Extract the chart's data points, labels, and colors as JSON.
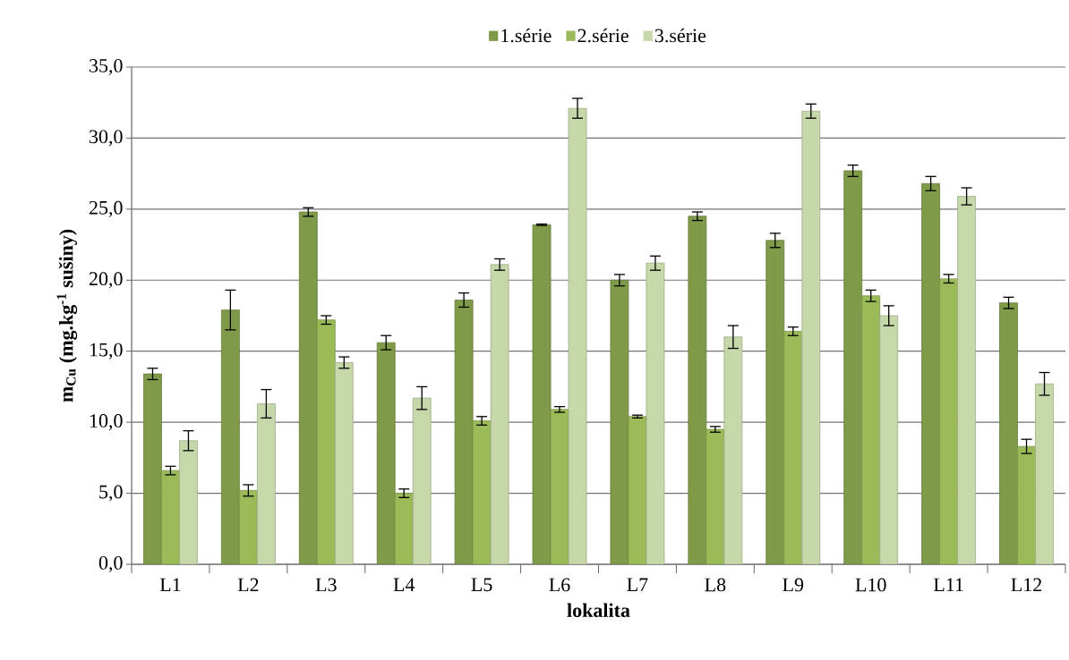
{
  "chart_data": {
    "type": "bar",
    "xlabel": "lokalita",
    "ylabel": "m$_{Cu}$ (mg.kg$^{-1}$ sušiny)",
    "categories": [
      "L1",
      "L2",
      "L3",
      "L4",
      "L5",
      "L6",
      "L7",
      "L8",
      "L9",
      "L10",
      "L11",
      "L12"
    ],
    "series": [
      {
        "name": "1.série",
        "color": "#7f9a48",
        "values": [
          13.4,
          17.9,
          24.8,
          15.6,
          18.6,
          23.9,
          20.0,
          24.5,
          22.8,
          27.7,
          26.8,
          18.4
        ],
        "errors": [
          0.4,
          1.4,
          0.3,
          0.5,
          0.5,
          0.05,
          0.4,
          0.3,
          0.5,
          0.4,
          0.5,
          0.4
        ]
      },
      {
        "name": "2.série",
        "color": "#9bbb59",
        "values": [
          6.6,
          5.2,
          17.2,
          5.0,
          10.1,
          10.9,
          10.4,
          9.5,
          16.4,
          18.9,
          20.1,
          8.3
        ],
        "errors": [
          0.3,
          0.4,
          0.3,
          0.3,
          0.3,
          0.2,
          0.1,
          0.2,
          0.3,
          0.4,
          0.3,
          0.5
        ]
      },
      {
        "name": "3.série",
        "color": "#c6d7a9",
        "values": [
          8.7,
          11.3,
          14.2,
          11.7,
          21.1,
          32.1,
          21.2,
          16.0,
          31.9,
          17.5,
          25.9,
          12.7
        ],
        "errors": [
          0.7,
          1.0,
          0.4,
          0.8,
          0.4,
          0.7,
          0.5,
          0.8,
          0.5,
          0.7,
          0.6,
          0.8
        ]
      }
    ],
    "ylim": [
      0,
      35
    ],
    "yticks": [
      {
        "value": 0,
        "label": "0,0"
      },
      {
        "value": 5,
        "label": "5,0"
      },
      {
        "value": 10,
        "label": "10,0"
      },
      {
        "value": 15,
        "label": "15,0"
      },
      {
        "value": 20,
        "label": "20,0"
      },
      {
        "value": 25,
        "label": "25,0"
      },
      {
        "value": 30,
        "label": "30,0"
      },
      {
        "value": 35,
        "label": "35,0"
      }
    ],
    "grid": "y",
    "legend": "top"
  }
}
